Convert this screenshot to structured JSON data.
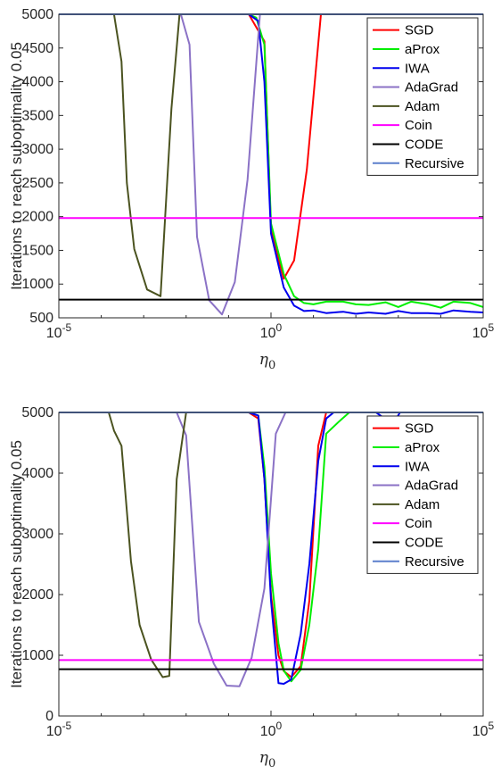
{
  "chart_data": [
    {
      "type": "line",
      "x_scale": "log",
      "xlim": [
        1e-05,
        100000
      ],
      "ylim": [
        500,
        5000
      ],
      "ylabel": "Iterations to reach suboptimality 0.05",
      "xlabel_base": "η",
      "xlabel_sub": "0",
      "yticks": [
        500,
        1000,
        1500,
        2000,
        2500,
        3000,
        3500,
        4000,
        4500,
        5000
      ],
      "xticks": [
        {
          "base": "10",
          "exp": "-5",
          "value": 1e-05
        },
        {
          "base": "10",
          "exp": "0",
          "value": 1,
          "plain": "10"
        },
        {
          "base": "10",
          "exp": "5",
          "value": 100000
        }
      ],
      "legend_position": "top-right",
      "series": [
        {
          "name": "SGD",
          "color": "#ff0000",
          "x": [
            0.01,
            0.05,
            0.3,
            0.7,
            1.0,
            2.0,
            3.5,
            7.0,
            15,
            30,
            100000
          ],
          "y": [
            5000,
            5000,
            5000,
            4600,
            1800,
            1080,
            1350,
            2700,
            5000,
            5000,
            5000
          ]
        },
        {
          "name": "aProx",
          "color": "#00ee00",
          "x": [
            0.01,
            0.1,
            0.3,
            0.45,
            0.7,
            1.0,
            2.0,
            3.5,
            6,
            10,
            20,
            50,
            100,
            200,
            500,
            1000,
            2000,
            5000,
            10000,
            20000,
            50000,
            100000
          ],
          "y": [
            5000,
            5000,
            5000,
            4950,
            4550,
            1900,
            1150,
            820,
            720,
            700,
            740,
            740,
            700,
            690,
            730,
            660,
            740,
            700,
            650,
            740,
            720,
            660
          ]
        },
        {
          "name": "IWA",
          "color": "#0000ee",
          "x": [
            0.01,
            0.1,
            0.3,
            0.5,
            0.7,
            1.0,
            2.0,
            3.5,
            6,
            10,
            20,
            50,
            100,
            200,
            500,
            1000,
            2000,
            5000,
            10000,
            20000,
            50000,
            100000
          ],
          "y": [
            5000,
            5000,
            5000,
            4900,
            4000,
            1750,
            950,
            680,
            600,
            610,
            570,
            590,
            560,
            580,
            560,
            600,
            570,
            570,
            560,
            610,
            590,
            580
          ]
        },
        {
          "name": "AdaGrad",
          "color": "#8b72c6",
          "x": [
            1e-05,
            0.003,
            0.0075,
            0.012,
            0.018,
            0.035,
            0.07,
            0.14,
            0.28,
            0.55,
            1.0,
            1.4,
            2.0,
            3.0,
            100000
          ],
          "y": [
            5000,
            5000,
            5000,
            4550,
            1700,
            760,
            550,
            1030,
            2550,
            5000,
            5000,
            5000,
            5000,
            5000,
            5000
          ]
        },
        {
          "name": "Adam",
          "color": "#4b5320",
          "x": [
            1e-05,
            0.0001,
            0.00015,
            0.0002,
            0.0003,
            0.0004,
            0.0006,
            0.0012,
            0.0025,
            0.0045,
            0.007,
            0.009,
            0.02,
            0.1,
            100000
          ],
          "y": [
            5000,
            5000,
            5000,
            5000,
            4300,
            2500,
            1520,
            920,
            820,
            3600,
            5000,
            5000,
            5000,
            5000,
            5000
          ]
        },
        {
          "name": "Coin",
          "color": "#ff00ff",
          "x": [
            1e-05,
            100000
          ],
          "y": [
            1980,
            1980
          ]
        },
        {
          "name": "CODE",
          "color": "#000000",
          "x": [
            1e-05,
            100000
          ],
          "y": [
            770,
            770
          ]
        },
        {
          "name": "Recursive",
          "color": "#5b7fcc",
          "x": [
            1e-05,
            100000
          ],
          "y": [
            5000,
            5000
          ]
        }
      ]
    },
    {
      "type": "line",
      "x_scale": "log",
      "xlim": [
        1e-05,
        100000
      ],
      "ylim": [
        0,
        5000
      ],
      "ylabel": "Iterations to reach suboptimality 0.05",
      "xlabel_base": "η",
      "xlabel_sub": "0",
      "yticks": [
        0,
        1000,
        2000,
        3000,
        4000,
        5000
      ],
      "xticks": [
        {
          "base": "10",
          "exp": "-5",
          "value": 1e-05
        },
        {
          "base": "10",
          "exp": "0",
          "value": 1,
          "plain": "10"
        },
        {
          "base": "10",
          "exp": "5",
          "value": 100000
        }
      ],
      "legend_position": "top-right",
      "series": [
        {
          "name": "SGD",
          "color": "#ff0000",
          "x": [
            0.01,
            0.05,
            0.3,
            0.5,
            0.7,
            1.0,
            1.5,
            2.0,
            3.0,
            5.0,
            8.0,
            13,
            20,
            30,
            100000
          ],
          "y": [
            5000,
            5000,
            5000,
            4900,
            3900,
            2000,
            1000,
            740,
            640,
            820,
            1900,
            4450,
            5000,
            5000,
            5000
          ]
        },
        {
          "name": "aProx",
          "color": "#00ee00",
          "x": [
            0.01,
            0.1,
            0.3,
            0.5,
            0.7,
            1.0,
            1.5,
            2.0,
            3.0,
            5.0,
            8.0,
            13,
            20,
            40,
            70,
            150,
            300,
            1000,
            10000,
            100000
          ],
          "y": [
            5000,
            5000,
            5000,
            4950,
            4100,
            2350,
            1200,
            750,
            570,
            760,
            1500,
            2750,
            4650,
            4850,
            5000,
            5000,
            5000,
            5000,
            5000,
            5000
          ]
        },
        {
          "name": "IWA",
          "color": "#0000ee",
          "x": [
            0.01,
            0.1,
            0.3,
            0.5,
            0.7,
            1.0,
            1.5,
            2.0,
            3.0,
            5.0,
            8.0,
            13,
            20,
            30,
            300,
            600,
            800,
            1100,
            1500,
            100000
          ],
          "y": [
            5000,
            5000,
            5000,
            4950,
            3900,
            1900,
            540,
            530,
            600,
            1350,
            2500,
            4200,
            4900,
            5000,
            5000,
            4850,
            4850,
            5000,
            5000,
            5000
          ]
        },
        {
          "name": "AdaGrad",
          "color": "#8b72c6",
          "x": [
            1e-05,
            0.003,
            0.006,
            0.01,
            0.02,
            0.045,
            0.09,
            0.18,
            0.35,
            0.7,
            1.3,
            2.2,
            3.5,
            100000
          ],
          "y": [
            5000,
            5000,
            5000,
            4620,
            1550,
            860,
            500,
            490,
            960,
            2100,
            4650,
            5000,
            5000,
            5000
          ]
        },
        {
          "name": "Adam",
          "color": "#4b5320",
          "x": [
            1e-05,
            0.0001,
            0.00015,
            0.0002,
            0.0003,
            0.0005,
            0.0008,
            0.0015,
            0.0028,
            0.004,
            0.006,
            0.01,
            0.016,
            0.03,
            100000
          ],
          "y": [
            5000,
            5000,
            5000,
            4700,
            4450,
            2550,
            1500,
            930,
            640,
            660,
            3900,
            5000,
            5000,
            5000,
            5000
          ]
        },
        {
          "name": "Coin",
          "color": "#ff00ff",
          "x": [
            1e-05,
            100000
          ],
          "y": [
            920,
            920
          ]
        },
        {
          "name": "CODE",
          "color": "#000000",
          "x": [
            1e-05,
            100000
          ],
          "y": [
            770,
            770
          ]
        },
        {
          "name": "Recursive",
          "color": "#5b7fcc",
          "x": [
            1e-05,
            100000
          ],
          "y": [
            5000,
            5000
          ]
        }
      ]
    }
  ]
}
